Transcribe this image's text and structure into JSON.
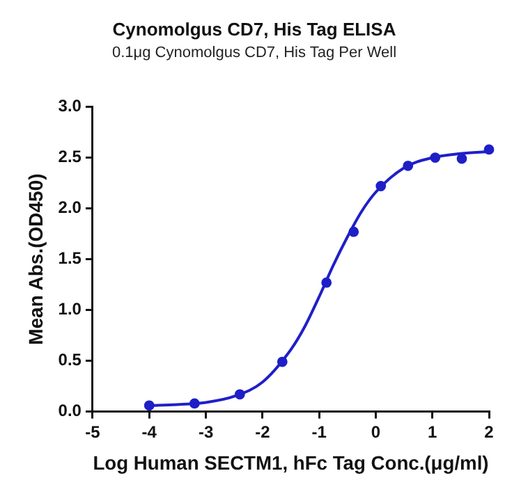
{
  "chart_data": {
    "type": "scatter",
    "title": "Cynomolgus CD7, His Tag ELISA",
    "subtitle": "0.1μg Cynomolgus CD7, His Tag Per Well",
    "xlabel": "Log Human SECTM1, hFc Tag Conc.(μg/ml)",
    "ylabel": "Mean Abs.(OD450)",
    "series": [
      {
        "type": "scatter",
        "marker": "circle",
        "color": "#1f1fc8",
        "x": [
          -4,
          -3.2,
          -2.4,
          -1.65,
          -0.87,
          -0.39,
          0.09,
          0.57,
          1.05,
          1.52,
          2
        ],
        "values": [
          0.06,
          0.08,
          0.17,
          0.49,
          1.27,
          1.77,
          2.22,
          2.42,
          2.5,
          2.49,
          2.58
        ]
      },
      {
        "type": "line",
        "color": "#1f1fc8",
        "x": [
          -4,
          -3.5,
          -3,
          -2.5,
          -2,
          -1.5,
          -1.25,
          -1,
          -0.75,
          -0.5,
          -0.25,
          0,
          0.5,
          1,
          1.5,
          2
        ],
        "values": [
          0.06,
          0.07,
          0.09,
          0.15,
          0.29,
          0.61,
          0.84,
          1.13,
          1.44,
          1.72,
          1.97,
          2.16,
          2.4,
          2.5,
          2.54,
          2.56
        ]
      }
    ],
    "xlim": [
      -5,
      2
    ],
    "xticks": [
      -5,
      -4,
      -3,
      -2,
      -1,
      0,
      1,
      2
    ],
    "ylim": [
      0,
      3
    ],
    "yticks": [
      {
        "value": 0,
        "label": "0.0"
      },
      {
        "value": 0.5,
        "label": "0.5"
      },
      {
        "value": 1,
        "label": "1.0"
      },
      {
        "value": 1.5,
        "label": "1.5"
      },
      {
        "value": 2,
        "label": "2.0"
      },
      {
        "value": 2.5,
        "label": "2.5"
      },
      {
        "value": 3,
        "label": "3.0"
      }
    ],
    "grid": false,
    "legend": false,
    "line_style": "solid"
  }
}
